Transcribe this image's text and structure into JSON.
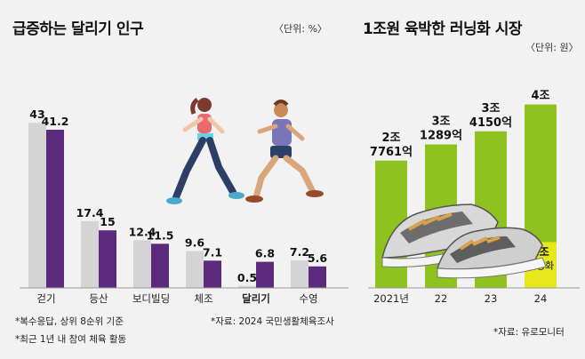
{
  "charts": {
    "left": {
      "title": "급증하는 달리기 인구",
      "unit": "〈단위: %〉",
      "notes": [
        "*복수응답, 상위 8순위 기준",
        "*최근 1년 내 참여 체육 활동"
      ],
      "source": "*자료: 2024 국민생활체육조사"
    },
    "right": {
      "title": "1조원 육박한 러닝화 시장",
      "unit": "〈단위: 원〉",
      "source": "*자료: 유로모니터"
    }
  },
  "colors": {
    "gray_bar": "#d4d4d4",
    "purple_bar": "#5c2a7c",
    "green_bar": "#8ec21f",
    "yellow_bar": "#e7e81c"
  },
  "chart_data": [
    {
      "type": "bar",
      "title": "급증하는 달리기 인구",
      "categories": [
        "걷기",
        "등산",
        "보디빌딩",
        "체조",
        "달리기",
        "수영"
      ],
      "series": [
        {
          "values": [
            43,
            17.4,
            12.4,
            9.6,
            0.5,
            7.2
          ],
          "labels": [
            "43",
            "17.4",
            "12.4",
            "9.6",
            "0.5",
            "7.2"
          ]
        },
        {
          "values": [
            41.2,
            15,
            11.5,
            7.1,
            6.8,
            5.6
          ],
          "labels": [
            "41.2",
            "15",
            "11.5",
            "7.1",
            "6.8",
            "5.6"
          ]
        }
      ],
      "highlight_category": "달리기",
      "ylim": [
        0,
        50
      ],
      "grid": false
    },
    {
      "type": "bar",
      "title": "1조원 육박한 러닝화 시장",
      "categories": [
        "2021년",
        "22",
        "23",
        "24"
      ],
      "values": [
        27761,
        31289,
        34150,
        40000
      ],
      "labels": [
        [
          "2조",
          "7761억"
        ],
        [
          "3조",
          "1289억"
        ],
        [
          "3조",
          "4150억"
        ],
        [
          "4조"
        ]
      ],
      "segment_last": {
        "value": 10000,
        "labels": [
          "1조",
          "러닝화"
        ]
      },
      "ylim": [
        0,
        50000
      ],
      "grid": false
    }
  ]
}
